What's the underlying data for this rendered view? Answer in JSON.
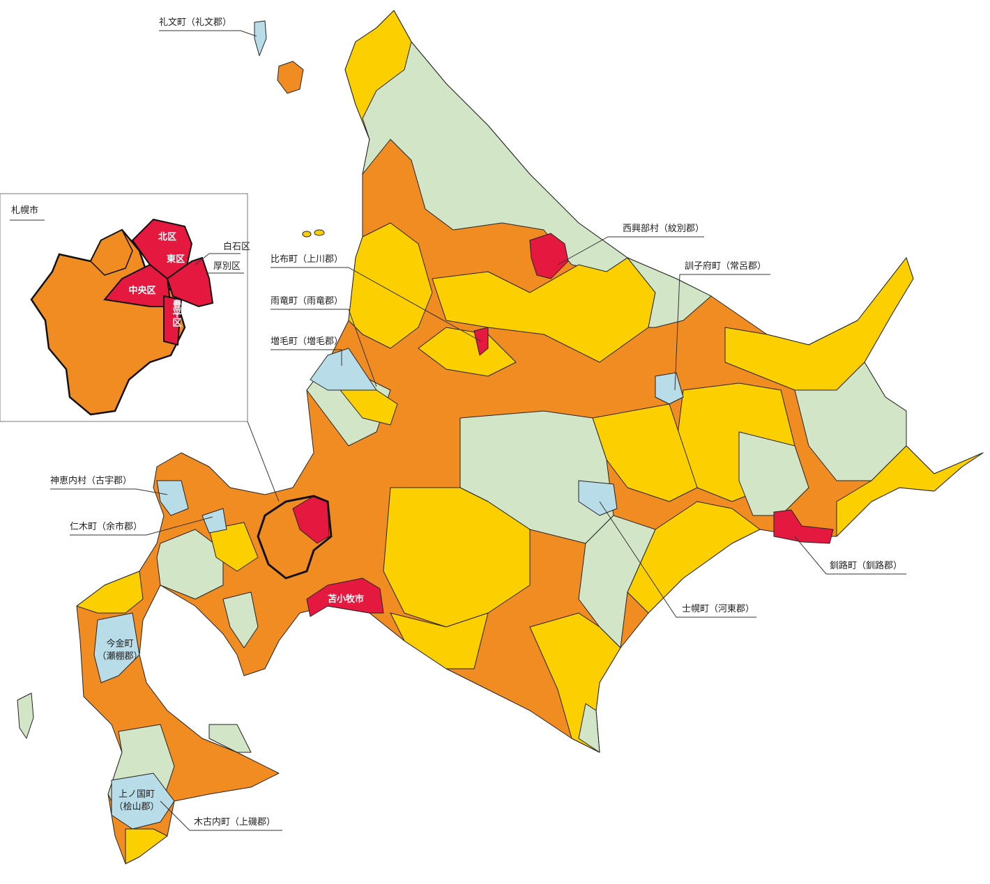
{
  "inset": {
    "title": "札幌市",
    "wards": [
      "北区",
      "東区",
      "白石区",
      "厚別区",
      "中央区",
      "豊平区"
    ]
  },
  "labels": [
    "礼文町（礼文郡）",
    "西興部村（紋別郡）",
    "訓子府町（常呂郡）",
    "比布町（上川郡）",
    "雨竜町（雨竜郡）",
    "増毛町（増毛郡）",
    "神恵内村（古宇郡）",
    "仁木町（余市郡）",
    "釧路町（釧路郡）",
    "士幌町（河東郡）",
    "木古内町（上磯郡）"
  ],
  "multiline_labels": [
    [
      "今金町",
      "（瀬棚郡）"
    ],
    [
      "上ノ国町",
      "（桧山郡）"
    ]
  ],
  "city_label": "苫小牧市"
}
